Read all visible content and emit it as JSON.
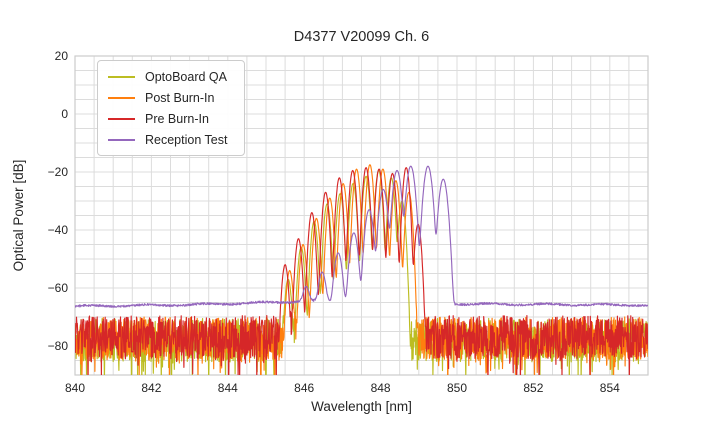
{
  "figure": {
    "title": "D4377 V20099 Ch. 6"
  },
  "chart_data": {
    "type": "line",
    "title": "D4377 V20099 Ch. 6",
    "xlabel": "Wavelength [nm]",
    "ylabel": "Optical Power [dB]",
    "xlim": [
      840,
      855
    ],
    "ylim": [
      -90,
      20
    ],
    "grid": true,
    "grid_step_x_nm": 0.5,
    "grid_step_y_db": 5,
    "grid_color": "#dcdcdc",
    "spine_color": "#cccccc",
    "text_color": "#262626",
    "legend_position": "upper left",
    "x_tick_values": [
      840,
      842,
      844,
      846,
      848,
      850,
      852,
      854
    ],
    "x_tick_labels": [
      "840",
      "842",
      "844",
      "846",
      "848",
      "850",
      "852",
      "854"
    ],
    "y_tick_values": [
      20,
      0,
      -20,
      -40,
      -60,
      -80
    ],
    "y_tick_labels": [
      "20",
      "0",
      "−20",
      "−40",
      "−60",
      "−80"
    ],
    "sample_step_nm": 0.01,
    "series": [
      {
        "name": "OptoBoard QA",
        "color": "#bcbd22",
        "mode_sigma_nm": 0.045,
        "modes_nm_db": [
          [
            845.58,
            -57
          ],
          [
            845.92,
            -46
          ],
          [
            846.26,
            -37
          ],
          [
            846.6,
            -31
          ],
          [
            846.94,
            -27.5
          ],
          [
            847.28,
            -24
          ],
          [
            847.62,
            -21.5
          ],
          [
            847.95,
            -19.5
          ],
          [
            848.28,
            -22
          ],
          [
            848.56,
            -30
          ]
        ],
        "noise_floor": {
          "type": "spiky",
          "base_db": -78,
          "spread_db": 7.5,
          "dip_prob": 0.07,
          "dip_db": 9,
          "seed": 11
        }
      },
      {
        "name": "Post Burn-In",
        "color": "#ff7f0e",
        "mode_sigma_nm": 0.045,
        "modes_nm_db": [
          [
            845.62,
            -54
          ],
          [
            845.97,
            -45
          ],
          [
            846.32,
            -36
          ],
          [
            846.67,
            -29
          ],
          [
            847.02,
            -24
          ],
          [
            847.37,
            -19
          ],
          [
            847.72,
            -17.5
          ],
          [
            848.06,
            -19
          ],
          [
            848.4,
            -23
          ],
          [
            848.74,
            -27
          ]
        ],
        "noise_floor": {
          "type": "spiky",
          "base_db": -77.5,
          "spread_db": 7.5,
          "dip_prob": 0.07,
          "dip_db": 9,
          "seed": 22
        }
      },
      {
        "name": "Pre Burn-In",
        "color": "#d62728",
        "mode_sigma_nm": 0.045,
        "modes_nm_db": [
          [
            845.5,
            -52
          ],
          [
            845.85,
            -43
          ],
          [
            846.2,
            -34
          ],
          [
            846.56,
            -27
          ],
          [
            846.92,
            -22
          ],
          [
            847.27,
            -19.5
          ],
          [
            847.62,
            -18.5
          ],
          [
            847.96,
            -19
          ],
          [
            848.31,
            -20.5
          ],
          [
            848.67,
            -18.5
          ],
          [
            848.98,
            -38
          ]
        ],
        "noise_floor": {
          "type": "spiky",
          "base_db": -77,
          "spread_db": 7.5,
          "dip_prob": 0.07,
          "dip_db": 9,
          "seed": 33
        }
      },
      {
        "name": "Reception Test",
        "color": "#9467bd",
        "mode_sigma_nm": 0.06,
        "modes_nm_db": [
          [
            846.05,
            -61
          ],
          [
            846.47,
            -55
          ],
          [
            846.89,
            -48
          ],
          [
            847.3,
            -41
          ],
          [
            847.7,
            -33
          ],
          [
            848.07,
            -26
          ],
          [
            848.43,
            -19.5
          ],
          [
            848.79,
            -18
          ],
          [
            849.24,
            -18
          ],
          [
            849.64,
            -22.5
          ]
        ],
        "noise_floor": {
          "type": "smooth",
          "floor_points_nm_db": [
            [
              840,
              -66.3
            ],
            [
              843,
              -65.8
            ],
            [
              845.3,
              -64.9
            ],
            [
              846.0,
              -64.5
            ],
            [
              850,
              -65.5
            ],
            [
              855,
              -65.9
            ]
          ],
          "ripple_db": 0.35,
          "seed": 44
        }
      }
    ]
  }
}
